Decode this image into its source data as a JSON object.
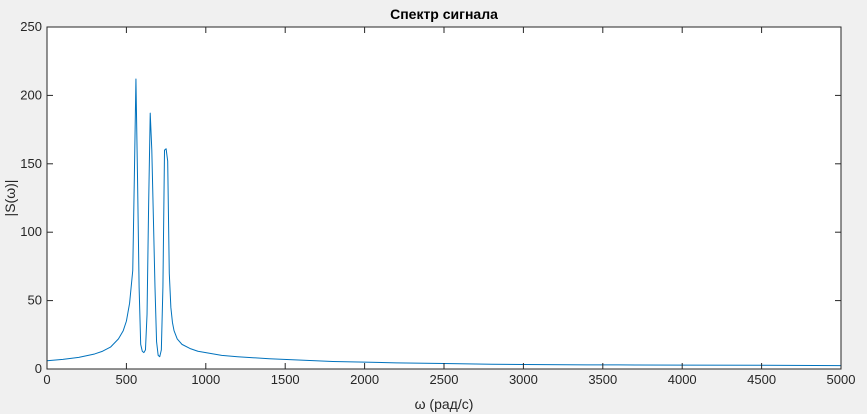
{
  "chart_data": {
    "type": "line",
    "title": "Спектр сигнала",
    "xlabel": "ω (рад/с)",
    "ylabel": "|S(ω)|",
    "xlim": [
      0,
      5000
    ],
    "ylim": [
      0,
      250
    ],
    "xticks": [
      0,
      500,
      1000,
      1500,
      2000,
      2500,
      3000,
      3500,
      4000,
      4500,
      5000
    ],
    "yticks": [
      0,
      50,
      100,
      150,
      200,
      250
    ],
    "grid": false,
    "series": [
      {
        "color": "#0072bd",
        "x": [
          0,
          100,
          200,
          300,
          350,
          400,
          450,
          480,
          500,
          520,
          540,
          550,
          560,
          570,
          580,
          590,
          600,
          610,
          620,
          630,
          640,
          650,
          660,
          670,
          680,
          690,
          700,
          710,
          720,
          730,
          740,
          750,
          760,
          770,
          780,
          790,
          800,
          820,
          850,
          900,
          950,
          1000,
          1100,
          1200,
          1400,
          1600,
          1800,
          2000,
          2200,
          2500,
          2600,
          2800,
          3000,
          3400,
          3600,
          4000,
          4500,
          5000
        ],
        "y": [
          6,
          7,
          8.5,
          11,
          13,
          16,
          22,
          28,
          35,
          48,
          72,
          140,
          212,
          140,
          60,
          18,
          13,
          12,
          14,
          40,
          120,
          187,
          160,
          110,
          60,
          20,
          10,
          9,
          14,
          60,
          160,
          161,
          152,
          70,
          45,
          34,
          28,
          22,
          18,
          15,
          13,
          12,
          10,
          9,
          7.5,
          6.5,
          5.5,
          5,
          4.5,
          4,
          3.8,
          3.5,
          3.3,
          3,
          3,
          2.8,
          2.7,
          2.5
        ]
      }
    ]
  }
}
